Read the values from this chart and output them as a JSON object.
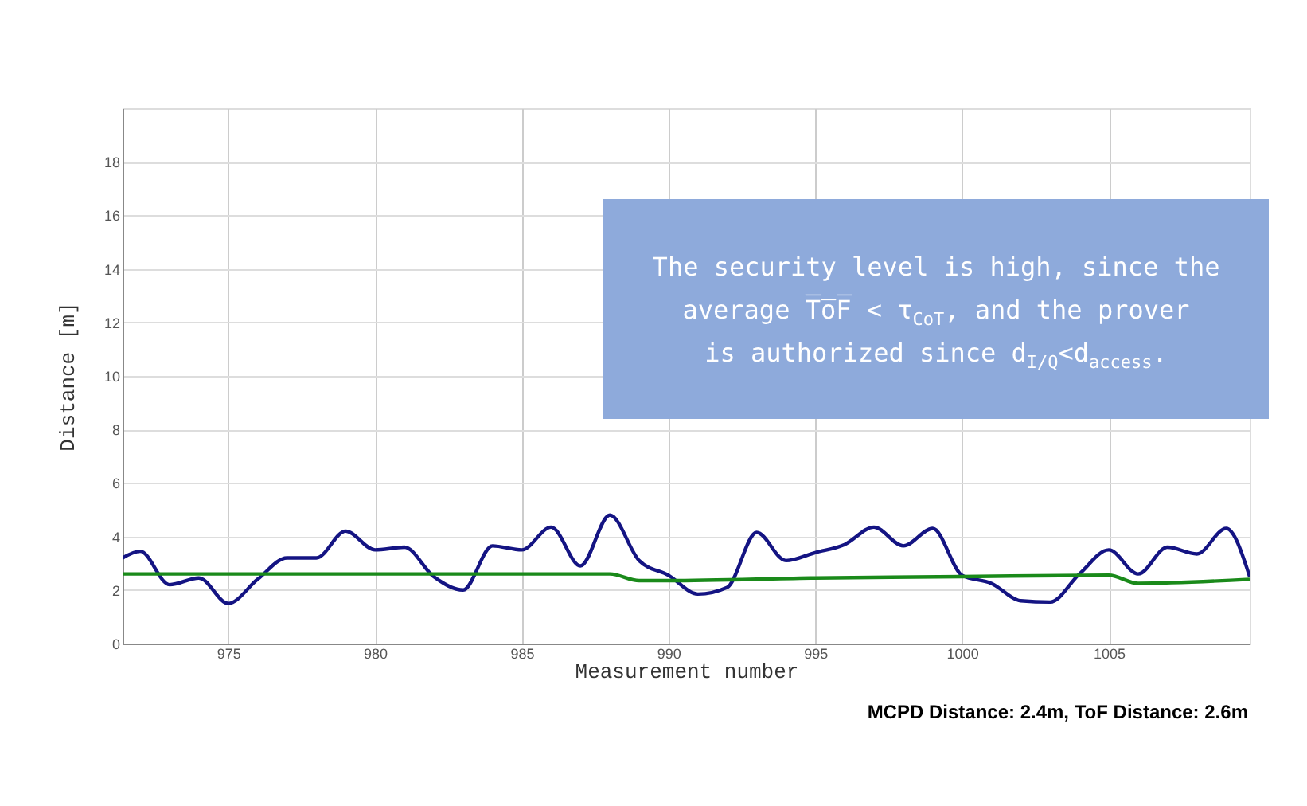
{
  "chart_data": {
    "type": "line",
    "xlabel": "Measurement number",
    "ylabel": "Distance [m]",
    "xlim": [
      971.4,
      1009.8
    ],
    "xticks": [
      975,
      980,
      985,
      990,
      995,
      {
        "value": 1000,
        "label": "1000"
      },
      {
        "value": 1005,
        "label": "1005"
      }
    ],
    "ylim": [
      0,
      20
    ],
    "yticks": [
      0,
      2,
      4,
      6,
      8,
      10,
      12,
      14,
      16,
      18
    ],
    "grid": true,
    "marker": "none",
    "line_style": "solid",
    "series": [
      {
        "color": "#141483",
        "x": [
          971.4,
          972,
          973,
          974,
          975,
          976,
          977,
          978,
          979,
          980,
          981,
          982,
          983,
          984,
          985,
          986,
          987,
          988,
          989,
          990,
          991,
          992,
          993,
          994,
          995,
          996,
          997,
          998,
          999,
          1000,
          1001,
          1002,
          1003,
          1004,
          1005,
          1006,
          1007,
          1008,
          1009,
          1009.8
        ],
        "values": [
          3.2,
          3.45,
          2.2,
          2.45,
          1.5,
          2.4,
          3.2,
          3.2,
          4.2,
          3.5,
          3.6,
          2.5,
          2.0,
          3.65,
          3.5,
          4.35,
          2.9,
          4.8,
          3.1,
          2.55,
          1.85,
          2.1,
          4.15,
          3.1,
          3.4,
          3.7,
          4.35,
          3.65,
          4.3,
          2.55,
          2.25,
          1.6,
          1.55,
          2.6,
          3.5,
          2.6,
          3.6,
          3.35,
          4.3,
          2.5
        ]
      },
      {
        "color": "#1a8a1a",
        "x": [
          971.4,
          988,
          989,
          990,
          995,
          1000,
          1005,
          1006,
          1009.8
        ],
        "values": [
          2.6,
          2.6,
          2.35,
          2.35,
          2.45,
          2.5,
          2.55,
          2.25,
          2.4
        ]
      }
    ],
    "annotations": [
      "The security level is high, since the\naverage T̅o̅F̅ < τ$_{CoT}$, and the prover\nis authorized since d$_{I/Q}$<d$_{access}$.",
      "MCPD Distance: 2.4m, ToF Distance: 2.6m"
    ]
  }
}
